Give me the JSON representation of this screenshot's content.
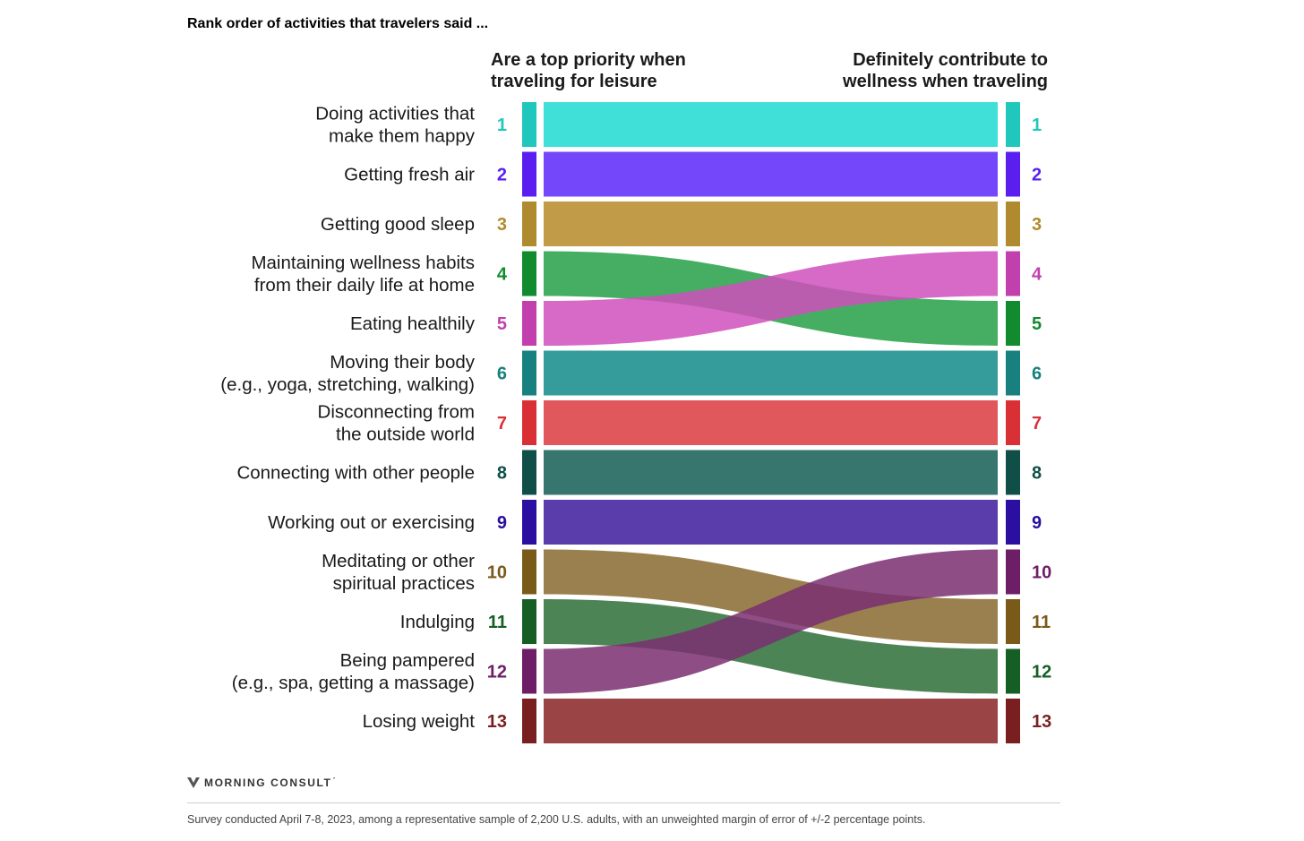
{
  "title": "Rank order of activities that travelers said ...",
  "brand": {
    "name": "MORNING CONSULT",
    "mark": "´",
    "logo_icon": "m-logo-icon"
  },
  "footnote": "Survey conducted April 7-8, 2023, among a representative sample of 2,200 U.S. adults, with an unweighted margin of error of +/-2 percentage points.",
  "chart_data": {
    "type": "slope",
    "left_axis_title": [
      "Are a top priority when",
      "traveling for leisure"
    ],
    "right_axis_title": [
      "Definitely contribute to",
      "wellness when traveling"
    ],
    "items": [
      {
        "label": [
          "Doing activities that",
          "make them happy"
        ],
        "left_rank": 1,
        "right_rank": 1,
        "color": "#1fc7bd",
        "flow_color": "#40e0d8"
      },
      {
        "label": [
          "Getting fresh air"
        ],
        "left_rank": 2,
        "right_rank": 2,
        "color": "#5a1ff0",
        "flow_color": "#7447fb"
      },
      {
        "label": [
          "Getting good sleep"
        ],
        "left_rank": 3,
        "right_rank": 3,
        "color": "#b08a2e",
        "flow_color": "#c19b47"
      },
      {
        "label": [
          "Maintaining wellness habits",
          "from their daily life at home"
        ],
        "left_rank": 4,
        "right_rank": 5,
        "color": "#128a2e",
        "flow_color": "#25a046"
      },
      {
        "label": [
          "Eating healthily"
        ],
        "left_rank": 5,
        "right_rank": 4,
        "color": "#c23fae",
        "flow_color": "#d04fbd"
      },
      {
        "label": [
          "Moving their body",
          "(e.g., yoga, stretching, walking)"
        ],
        "left_rank": 6,
        "right_rank": 6,
        "color": "#18807e",
        "flow_color": "#369c9b"
      },
      {
        "label": [
          "Disconnecting from",
          "the outside world"
        ],
        "left_rank": 7,
        "right_rank": 7,
        "color": "#d93036",
        "flow_color": "#e0575c"
      },
      {
        "label": [
          "Connecting with other people"
        ],
        "left_rank": 8,
        "right_rank": 8,
        "color": "#0f4f48",
        "flow_color": "#37756f"
      },
      {
        "label": [
          "Working out or exercising"
        ],
        "left_rank": 9,
        "right_rank": 9,
        "color": "#2a0fa0",
        "flow_color": "#5a3cab"
      },
      {
        "label": [
          "Meditating or other",
          "spiritual practices"
        ],
        "left_rank": 10,
        "right_rank": 11,
        "color": "#7a5a18",
        "flow_color": "#8a6a30"
      },
      {
        "label": [
          "Indulging"
        ],
        "left_rank": 11,
        "right_rank": 12,
        "color": "#165f24",
        "flow_color": "#2e6e38"
      },
      {
        "label": [
          "Being pampered",
          "(e.g., spa, getting a massage)"
        ],
        "left_rank": 12,
        "right_rank": 10,
        "color": "#6e1e66",
        "flow_color": "#7a2f70"
      },
      {
        "label": [
          "Losing weight"
        ],
        "left_rank": 13,
        "right_rank": 13,
        "color": "#7a1f1f",
        "flow_color": "#9a4446"
      }
    ]
  }
}
